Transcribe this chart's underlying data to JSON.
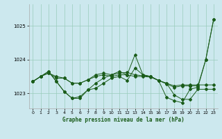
{
  "xlabel": "Graphe pression niveau de la mer (hPa)",
  "bg_color": "#cce8ee",
  "grid_color": "#99ccbb",
  "line_color": "#1a5c1a",
  "xlim": [
    -0.5,
    23.5
  ],
  "ylim": [
    1022.55,
    1025.65
  ],
  "yticks": [
    1023,
    1024,
    1025
  ],
  "xticks": [
    0,
    1,
    2,
    3,
    4,
    5,
    6,
    7,
    8,
    9,
    10,
    11,
    12,
    13,
    14,
    15,
    16,
    17,
    18,
    19,
    20,
    21,
    22,
    23
  ],
  "series": [
    [
      1023.35,
      1023.5,
      1023.6,
      1023.45,
      1023.45,
      1023.3,
      1023.3,
      1023.4,
      1023.5,
      1023.55,
      1023.5,
      1023.55,
      1023.55,
      1023.5,
      1023.5,
      1023.48,
      1023.38,
      1023.3,
      1023.22,
      1023.25,
      1023.25,
      1023.25,
      1023.25,
      1023.25
    ],
    [
      1023.35,
      1023.5,
      1023.65,
      1023.35,
      1023.05,
      1022.85,
      1022.85,
      1023.1,
      1023.15,
      1023.3,
      1023.45,
      1023.5,
      1023.38,
      1023.75,
      1023.55,
      1023.5,
      1023.38,
      1023.3,
      1022.95,
      1022.82,
      1022.82,
      1023.12,
      1023.12,
      1023.12
    ],
    [
      1023.35,
      1023.5,
      1023.65,
      1023.35,
      1023.05,
      1022.85,
      1022.9,
      1023.1,
      1023.3,
      1023.45,
      1023.55,
      1023.65,
      1023.55,
      1024.15,
      1023.55,
      1023.5,
      1023.38,
      1022.88,
      1022.78,
      1022.72,
      1023.12,
      1023.18,
      1024.0,
      1025.2
    ],
    [
      1023.35,
      1023.5,
      1023.6,
      1023.5,
      1023.45,
      1023.3,
      1023.3,
      1023.4,
      1023.55,
      1023.6,
      1023.55,
      1023.6,
      1023.62,
      1023.55,
      1023.52,
      1023.5,
      1023.38,
      1023.28,
      1023.18,
      1023.22,
      1023.22,
      1023.22,
      1024.0,
      1025.2
    ]
  ]
}
